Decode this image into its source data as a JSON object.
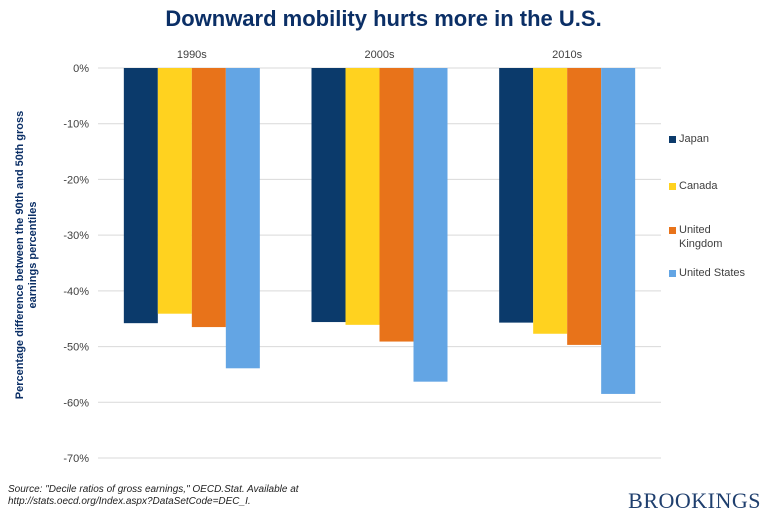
{
  "chart_data": {
    "type": "bar",
    "title": "Downward mobility hurts more in the U.S.",
    "ylabel": "Percentage difference between the 90th and 50th gross earnings percentiles",
    "xlabel": "",
    "categories": [
      "1990s",
      "2000s",
      "2010s"
    ],
    "series": [
      {
        "name": "Japan",
        "color": "#0b3a6b",
        "values": [
          -45.8,
          -45.6,
          -45.7
        ]
      },
      {
        "name": "Canada",
        "color": "#ffd21f",
        "values": [
          -44.1,
          -46.1,
          -47.7
        ]
      },
      {
        "name": "United Kingdom",
        "color": "#e8731a",
        "values": [
          -46.5,
          -49.1,
          -49.7
        ]
      },
      {
        "name": "United States",
        "color": "#63a5e4",
        "values": [
          -53.9,
          -56.3,
          -58.5
        ]
      }
    ],
    "ylim": [
      -70,
      0
    ],
    "yticks": [
      0,
      -10,
      -20,
      -30,
      -40,
      -50,
      -60,
      -70
    ],
    "ytick_labels": [
      "0%",
      "-10%",
      "-20%",
      "-30%",
      "-40%",
      "-50%",
      "-60%",
      "-70%"
    ],
    "grid": true,
    "legend_position": "right",
    "legend_labels": [
      "Japan",
      "Canada",
      "United Kingdom",
      "United States"
    ]
  },
  "source": "Source: \"Decile ratios of gross earnings,\" OECD.Stat. Available at http://stats.oecd.org/Index.aspx?DataSetCode=DEC_I.",
  "brand": "BROOKINGS"
}
